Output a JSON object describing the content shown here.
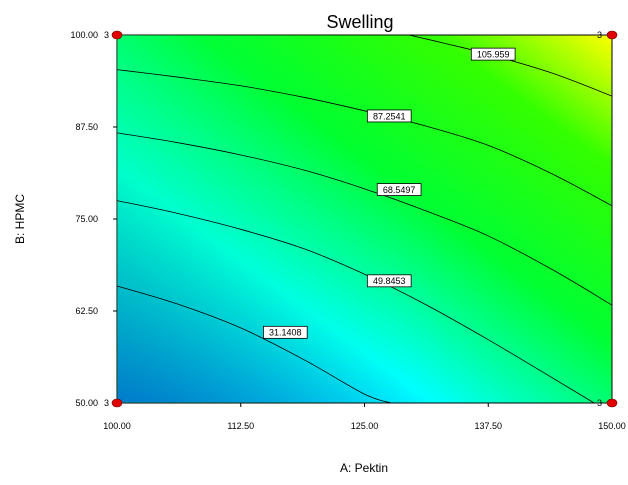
{
  "chart_data": {
    "type": "contour",
    "title": "Swelling",
    "xlabel": "A: Pektin",
    "ylabel": "B: HPMC",
    "xlim": [
      100,
      150
    ],
    "ylim": [
      50,
      100
    ],
    "x_ticks": [
      "100.00",
      "112.50",
      "125.00",
      "137.50",
      "150.00"
    ],
    "y_ticks": [
      "50.00",
      "62.50",
      "75.00",
      "87.50",
      "100.00"
    ],
    "contours": [
      {
        "label": "31.1408",
        "points": [
          [
            100,
            65.9
          ],
          [
            106,
            63.5
          ],
          [
            112.5,
            60.2
          ],
          [
            119,
            55.8
          ],
          [
            125,
            51.2
          ],
          [
            127.7,
            50
          ]
        ]
      },
      {
        "label": "49.8453",
        "points": [
          [
            100,
            77.5
          ],
          [
            106,
            75.8
          ],
          [
            112.5,
            73.6
          ],
          [
            119,
            70.9
          ],
          [
            125,
            67.5
          ],
          [
            131,
            63.5
          ],
          [
            137.5,
            58.6
          ],
          [
            144,
            53.4
          ],
          [
            148.2,
            50
          ]
        ]
      },
      {
        "label": "68.5497",
        "points": [
          [
            100,
            86.7
          ],
          [
            106,
            85.4
          ],
          [
            112.5,
            83.7
          ],
          [
            119,
            81.6
          ],
          [
            125,
            79.1
          ],
          [
            131,
            76.2
          ],
          [
            137.5,
            72.7
          ],
          [
            144,
            68.1
          ],
          [
            150,
            63.3
          ]
        ]
      },
      {
        "label": "87.2541",
        "points": [
          [
            100,
            95.3
          ],
          [
            106,
            94.3
          ],
          [
            112.5,
            93.1
          ],
          [
            119,
            91.5
          ],
          [
            125,
            89.7
          ],
          [
            131,
            87.7
          ],
          [
            137.5,
            85.0
          ],
          [
            144,
            81.1
          ],
          [
            150,
            76.8
          ]
        ]
      },
      {
        "label": "105.959",
        "points": [
          [
            129.5,
            100
          ],
          [
            133,
            98.9
          ],
          [
            137.5,
            97.4
          ],
          [
            144,
            94.8
          ],
          [
            150,
            91.7
          ]
        ]
      }
    ],
    "label_positions": [
      {
        "label": "31.1408",
        "x": 117,
        "y": 59.6
      },
      {
        "label": "49.8453",
        "x": 127.5,
        "y": 66.6
      },
      {
        "label": "68.5497",
        "x": 128.5,
        "y": 79.0
      },
      {
        "label": "87.2541",
        "x": 127.5,
        "y": 89.0
      },
      {
        "label": "105.959",
        "x": 138,
        "y": 97.4
      }
    ],
    "design_points": [
      {
        "x": 100,
        "y": 100,
        "count": "3"
      },
      {
        "x": 150,
        "y": 100,
        "count": "3"
      },
      {
        "x": 100,
        "y": 50,
        "count": "3"
      },
      {
        "x": 150,
        "y": 50,
        "count": "3"
      }
    ],
    "colors": {
      "low": "#0000ff",
      "mid": "#00ffff",
      "mid2": "#00ff00",
      "high": "#ffff00",
      "design_point": "#e00000"
    }
  }
}
